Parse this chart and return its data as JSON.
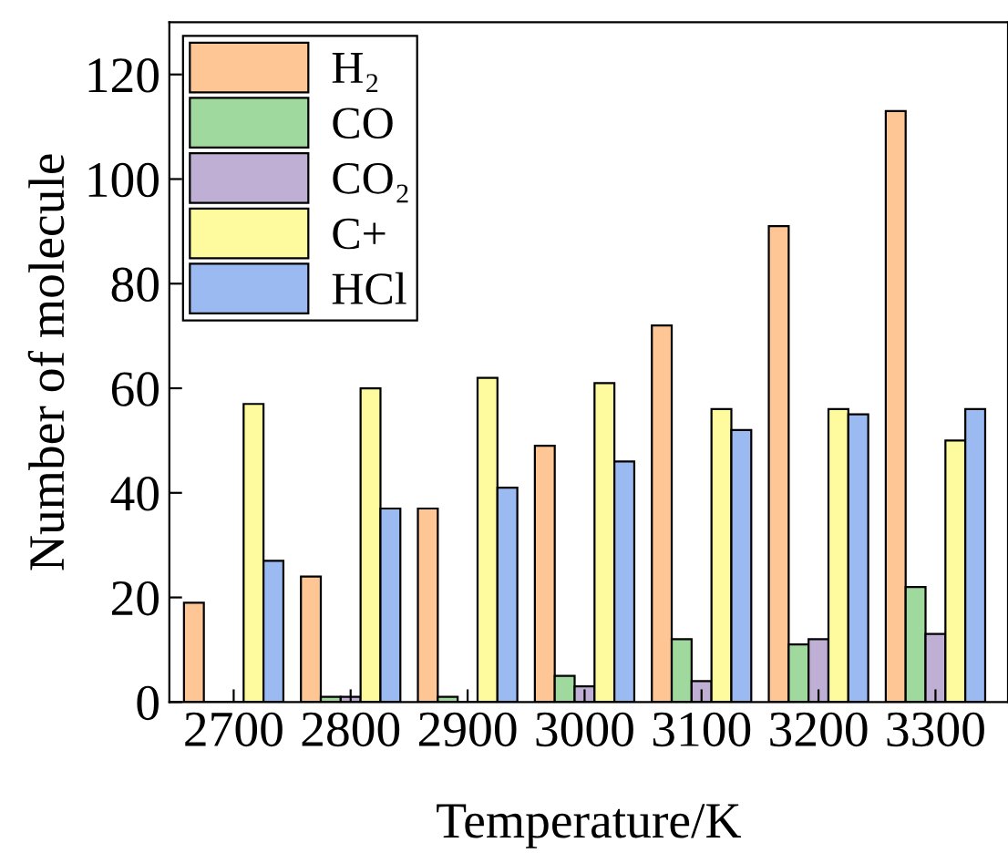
{
  "chart_data": {
    "type": "bar",
    "xlabel": "Temperature/K",
    "ylabel": "Number of molecule",
    "categories": [
      "2700",
      "2800",
      "2900",
      "3000",
      "3100",
      "3200",
      "3300"
    ],
    "series": [
      {
        "name": "H₂",
        "color": "#fdc694",
        "values": [
          19,
          24,
          37,
          49,
          72,
          91,
          113
        ]
      },
      {
        "name": "CO",
        "color": "#a0d99d",
        "values": [
          0,
          1,
          1,
          5,
          12,
          11,
          22
        ]
      },
      {
        "name": "CO₂",
        "color": "#c0afd5",
        "values": [
          0,
          1,
          0,
          3,
          4,
          12,
          13
        ]
      },
      {
        "name": "C+",
        "color": "#fefb9e",
        "values": [
          57,
          60,
          62,
          61,
          56,
          56,
          50
        ]
      },
      {
        "name": "HCl",
        "color": "#9bbaf2",
        "values": [
          27,
          37,
          41,
          46,
          52,
          55,
          56
        ]
      }
    ],
    "ylim": [
      0,
      130
    ],
    "yticks": [
      0,
      20,
      40,
      60,
      80,
      100,
      120
    ],
    "grid": false,
    "legend": "top left"
  }
}
